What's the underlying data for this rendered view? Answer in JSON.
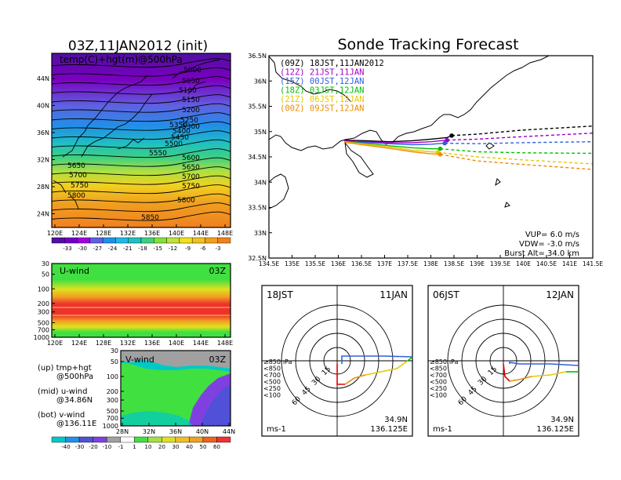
{
  "titles": {
    "left": "03Z,11JAN2012 (init)",
    "right": "Sonde Tracking Forecast"
  },
  "top_panel": {
    "label": "temp(C)+hgt(m)@500hPa",
    "lat_ticks": [
      "44N",
      "40N",
      "36N",
      "32N",
      "28N",
      "24N"
    ],
    "lon_ticks": [
      "120E",
      "124E",
      "128E",
      "132E",
      "136E",
      "140E",
      "144E",
      "148E"
    ],
    "contour_labels": [
      "5000",
      "5050",
      "5100",
      "5150",
      "5200",
      "5250",
      "5300",
      "5350",
      "5400",
      "5450",
      "5500",
      "5550",
      "5600",
      "5650",
      "5650",
      "5700",
      "5700",
      "5750",
      "5750",
      "5800",
      "5800",
      "5850"
    ],
    "colorbar_ticks": [
      "-33",
      "-30",
      "-27",
      "-24",
      "-21",
      "-18",
      "-15",
      "-12",
      "-9",
      "-6",
      "-3"
    ]
  },
  "u_panel": {
    "label": "U-wind",
    "time": "03Z",
    "p_ticks": [
      "30",
      "50",
      "100",
      "200",
      "300",
      "500",
      "700",
      "1000"
    ],
    "lon_ticks": [
      "120E",
      "124E",
      "128E",
      "132E",
      "136E",
      "140E",
      "144E",
      "148E"
    ]
  },
  "v_panel": {
    "label": "V-wind",
    "time": "03Z",
    "p_ticks": [
      "30",
      "50",
      "100",
      "200",
      "300",
      "500",
      "700",
      "1000"
    ],
    "lat_ticks": [
      "28N",
      "32N",
      "36N",
      "40N",
      "44N"
    ],
    "colorbar_ticks": [
      "-40",
      "-30",
      "-20",
      "-10",
      "-1",
      "1",
      "10",
      "20",
      "30",
      "40",
      "50",
      "60"
    ]
  },
  "legend_text": {
    "up1": "(up) tmp+hgt",
    "up2": "@500hPa",
    "mid1": "(mid) u-wind",
    "mid2": "@34.86N",
    "bot1": "(bot) v-wind",
    "bot2": "@136.11E"
  },
  "track_panel": {
    "legend": [
      {
        "text": "(09Z)  18JST,11JAN2012",
        "color": "#000000"
      },
      {
        "text": "(12Z)  21JST,11JAN",
        "color": "#a000c8"
      },
      {
        "text": "(15Z)  00JST,12JAN",
        "color": "#3060e0"
      },
      {
        "text": "(18Z)  03JST,12JAN",
        "color": "#00c000"
      },
      {
        "text": "(21Z)  06JST,12JAN",
        "color": "#e6c800"
      },
      {
        "text": "(00Z)  09JST,12JAN",
        "color": "#f08c00"
      }
    ],
    "lat_ticks": [
      "36.5N",
      "36N",
      "35.5N",
      "35N",
      "34.5N",
      "34N",
      "33.5N",
      "33N",
      "32.5N"
    ],
    "lon_ticks": [
      "134.5E",
      "135E",
      "135.5E",
      "136E",
      "136.5E",
      "137E",
      "137.5E",
      "138E",
      "138.5E",
      "139E",
      "139.5E",
      "140E",
      "140.5E",
      "141E",
      "141.5E"
    ],
    "info": [
      "VUP=  6.0  m/s",
      "VDW= -3.0  m/s",
      "Burst Alt= 34.0  km"
    ]
  },
  "polar_left": {
    "time": "18JST",
    "date": "11JAN",
    "lat": "34.9N",
    "lon": "136.125E",
    "unit": "ms-1"
  },
  "polar_right": {
    "time": "06JST",
    "date": "12JAN",
    "lat": "34.9N",
    "lon": "136.125E",
    "unit": "ms-1"
  },
  "polar_rings": [
    "15",
    "30",
    "45",
    "60"
  ],
  "polar_levels": [
    {
      "text": "≥850hPa",
      "color": "#e00000"
    },
    {
      "text": "<850",
      "color": "#f08c00"
    },
    {
      "text": "<700",
      "color": "#e6c800"
    },
    {
      "text": "<500",
      "color": "#00c000"
    },
    {
      "text": "<250",
      "color": "#00c8c8"
    },
    {
      "text": "<100",
      "color": "#3060e0"
    }
  ],
  "chart_data": {
    "type": "line",
    "title": "Sonde Tracking Forecast",
    "xlim": [
      134.5,
      141.5
    ],
    "ylim": [
      32.5,
      36.5
    ],
    "launch": {
      "lon": 136.125,
      "lat": 34.9
    },
    "series": [
      {
        "name": "(09Z) 18JST,11JAN2012",
        "color": "#000000",
        "points": [
          [
            136.125,
            34.83
          ],
          [
            136.6,
            34.82
          ],
          [
            137.1,
            34.8
          ],
          [
            137.6,
            34.82
          ],
          [
            138.0,
            34.85
          ],
          [
            138.35,
            34.88
          ],
          [
            138.45,
            34.92
          ]
        ],
        "dashed": [
          [
            138.45,
            34.92
          ],
          [
            139.0,
            34.95
          ],
          [
            140.0,
            35.03
          ],
          [
            141.5,
            35.11
          ]
        ]
      },
      {
        "name": "(12Z) 21JST,11JAN",
        "color": "#a000c8",
        "points": [
          [
            136.125,
            34.82
          ],
          [
            136.6,
            34.8
          ],
          [
            137.1,
            34.78
          ],
          [
            137.6,
            34.78
          ],
          [
            138.0,
            34.8
          ],
          [
            138.35,
            34.83
          ]
        ],
        "dashed": [
          [
            138.35,
            34.83
          ],
          [
            139.0,
            34.85
          ],
          [
            140.0,
            34.9
          ],
          [
            141.5,
            34.97
          ]
        ]
      },
      {
        "name": "(15Z) 00JST,12JAN",
        "color": "#3060e0",
        "points": [
          [
            136.125,
            34.8
          ],
          [
            136.6,
            34.78
          ],
          [
            137.1,
            34.76
          ],
          [
            137.6,
            34.74
          ],
          [
            138.0,
            34.75
          ],
          [
            138.3,
            34.77
          ]
        ],
        "dashed": [
          [
            138.3,
            34.77
          ],
          [
            139.0,
            34.76
          ],
          [
            140.0,
            34.78
          ],
          [
            141.5,
            34.8
          ]
        ]
      },
      {
        "name": "(18Z) 03JST,12JAN",
        "color": "#00c000",
        "points": [
          [
            136.125,
            34.8
          ],
          [
            136.6,
            34.76
          ],
          [
            137.1,
            34.72
          ],
          [
            137.6,
            34.68
          ],
          [
            138.0,
            34.66
          ],
          [
            138.2,
            34.66
          ]
        ],
        "dashed": [
          [
            138.2,
            34.66
          ],
          [
            139.0,
            34.6
          ],
          [
            140.0,
            34.58
          ],
          [
            141.5,
            34.57
          ]
        ]
      },
      {
        "name": "(21Z) 06JST,12JAN",
        "color": "#e6c800",
        "points": [
          [
            136.125,
            34.8
          ],
          [
            136.6,
            34.75
          ],
          [
            137.1,
            34.7
          ],
          [
            137.6,
            34.63
          ],
          [
            138.0,
            34.6
          ],
          [
            138.15,
            34.59
          ]
        ],
        "dashed": [
          [
            138.15,
            34.59
          ],
          [
            139.0,
            34.5
          ],
          [
            140.0,
            34.44
          ],
          [
            141.5,
            34.36
          ]
        ]
      },
      {
        "name": "(00Z) 09JST,12JAN",
        "color": "#f08c00",
        "points": [
          [
            136.125,
            34.79
          ],
          [
            136.6,
            34.73
          ],
          [
            137.1,
            34.67
          ],
          [
            137.6,
            34.6
          ],
          [
            138.0,
            34.56
          ],
          [
            138.2,
            34.55
          ]
        ],
        "dashed": [
          [
            138.2,
            34.55
          ],
          [
            139.0,
            34.42
          ],
          [
            140.0,
            34.35
          ],
          [
            141.5,
            34.25
          ]
        ]
      }
    ]
  }
}
